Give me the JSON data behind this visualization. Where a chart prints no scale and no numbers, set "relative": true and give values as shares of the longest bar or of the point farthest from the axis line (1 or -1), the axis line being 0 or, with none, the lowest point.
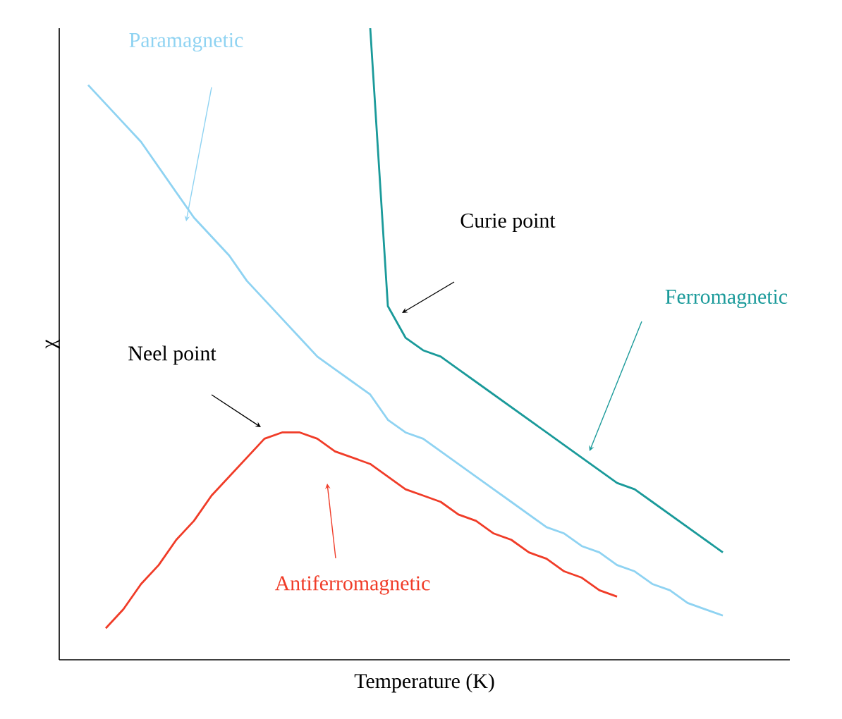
{
  "chart_data": {
    "type": "line",
    "relative": true,
    "xlabel": "Temperature (K)",
    "ylabel": "χ",
    "categories": [
      null,
      null,
      null,
      null,
      null,
      null,
      null,
      null,
      null,
      null,
      null,
      null,
      null,
      null,
      null,
      null,
      null,
      null,
      null,
      null,
      null,
      null,
      null,
      null,
      null,
      null,
      null,
      null,
      null,
      null,
      null,
      null,
      null,
      null,
      null,
      null,
      null,
      null,
      null,
      null,
      null
    ],
    "series": [
      {
        "name": "Paramagnetic",
        "color": "#8fd3f2",
        "values": [
          null,
          0.91,
          0.88,
          0.85,
          0.82,
          0.78,
          0.74,
          0.7,
          0.67,
          0.64,
          0.6,
          0.57,
          0.54,
          0.51,
          0.48,
          0.46,
          0.44,
          0.42,
          0.38,
          0.36,
          0.35,
          0.33,
          0.31,
          0.29,
          0.27,
          0.25,
          0.23,
          0.21,
          0.2,
          0.18,
          0.17,
          0.15,
          0.14,
          0.12,
          0.11,
          0.09,
          0.08,
          0.07,
          null,
          null,
          null
        ]
      },
      {
        "name": "Ferromagnetic",
        "color": "#1a9a9a",
        "values": [
          null,
          null,
          null,
          null,
          null,
          null,
          null,
          null,
          null,
          null,
          null,
          null,
          null,
          null,
          null,
          null,
          null,
          1,
          0.56,
          0.51,
          0.49,
          0.48,
          0.46,
          0.44,
          0.42,
          0.4,
          0.38,
          0.36,
          0.34,
          0.32,
          0.3,
          0.28,
          0.27,
          0.25,
          0.23,
          0.21,
          0.19,
          0.17,
          null,
          null,
          null
        ]
      },
      {
        "name": "Antiferromagnetic",
        "color": "#f03c28",
        "values": [
          null,
          null,
          0.05,
          0.08,
          0.12,
          0.15,
          0.19,
          0.22,
          0.26,
          0.29,
          0.32,
          0.35,
          0.36,
          0.36,
          0.35,
          0.33,
          0.32,
          0.31,
          0.29,
          0.27,
          0.26,
          0.25,
          0.23,
          0.22,
          0.2,
          0.19,
          0.17,
          0.16,
          0.14,
          0.13,
          0.11,
          0.1,
          null,
          null,
          null,
          null,
          null,
          null,
          null,
          null,
          null
        ]
      }
    ],
    "annotations": [
      "Curie point",
      "Neel point"
    ]
  }
}
